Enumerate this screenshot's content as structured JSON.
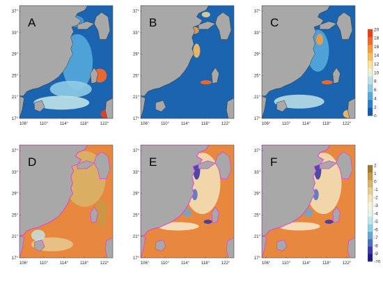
{
  "figure": {
    "panels": [
      {
        "id": "A",
        "label": "A",
        "row": 0,
        "col": 0,
        "scheme": "top",
        "variant": 0
      },
      {
        "id": "B",
        "label": "B",
        "row": 0,
        "col": 1,
        "scheme": "top",
        "variant": 1
      },
      {
        "id": "C",
        "label": "C",
        "row": 0,
        "col": 2,
        "scheme": "top",
        "variant": 2
      },
      {
        "id": "D",
        "label": "D",
        "row": 1,
        "col": 0,
        "scheme": "bottom",
        "variant": 0
      },
      {
        "id": "E",
        "label": "E",
        "row": 1,
        "col": 1,
        "scheme": "bottom",
        "variant": 1
      },
      {
        "id": "F",
        "label": "F",
        "row": 1,
        "col": 2,
        "scheme": "bottom",
        "variant": 2
      }
    ],
    "lat_ticks": [
      "37°",
      "33°",
      "29°",
      "25°",
      "21°",
      "17°"
    ],
    "lon_ticks": [
      "106°",
      "110°",
      "114°",
      "118°",
      "122°"
    ],
    "colorbar_top": {
      "ticks": [
        "20",
        "18",
        "16",
        "14",
        "12",
        "10",
        "8",
        "6",
        "4",
        "2",
        "0"
      ],
      "colors": [
        "#e8401c",
        "#f2692a",
        "#f79a3c",
        "#f9be62",
        "#fbe19a",
        "#e6f2d8",
        "#bfe3ea",
        "#8fcbe6",
        "#55a9dc",
        "#2c7fc9",
        "#1659a8"
      ]
    },
    "colorbar_bottom": {
      "ticks": [
        "2",
        "1",
        "0",
        "-1",
        "-2",
        "-3",
        "-4",
        "-5",
        "-6",
        "-7",
        "-8",
        "-9",
        "-20"
      ],
      "colors": [
        "#9c7a2c",
        "#c49a46",
        "#d7b56a",
        "#e6cf95",
        "#f2e4bd",
        "#f8f2d9",
        "#e4f3ee",
        "#bfe7e8",
        "#8dd3e3",
        "#64a7d5",
        "#4c6fc2",
        "#3a3aa6",
        "#231a86"
      ]
    },
    "land_color": "#a8a8a8",
    "ocean_top_color": "#1b64b0",
    "ocean_bottom_color": "#e8873e",
    "coast_color_bottom": "#e040d8"
  }
}
